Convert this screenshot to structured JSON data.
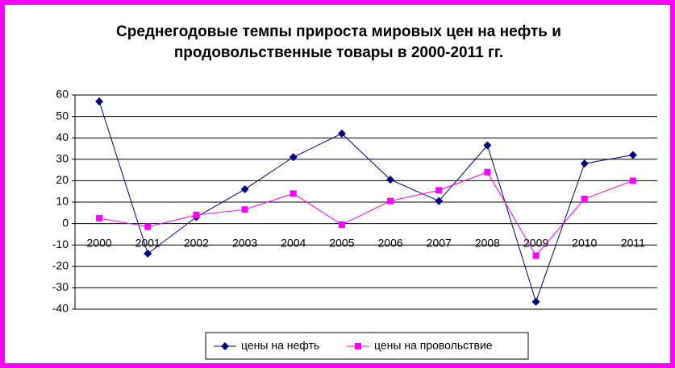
{
  "chart_data": {
    "type": "line",
    "title": [
      "Среднегодовые темпы прироста мировых цен на нефть и",
      "продовольственные товары в 2000-2011 гг."
    ],
    "categories": [
      "2000",
      "2001",
      "2002",
      "2003",
      "2004",
      "2005",
      "2006",
      "2007",
      "2008",
      "2009",
      "2010",
      "2011"
    ],
    "series": [
      {
        "name": "цены на нефть",
        "color": "#000080",
        "marker": "diamond",
        "values": [
          57,
          -14,
          3,
          16,
          31,
          42,
          20.5,
          10.5,
          36.5,
          -36.5,
          28,
          32
        ]
      },
      {
        "name": "цены на провольствие",
        "color": "#ff00ff",
        "marker": "square",
        "values": [
          2.5,
          -1.5,
          4,
          6.5,
          14,
          -0.5,
          10.5,
          15.5,
          24,
          -15,
          11.5,
          20
        ]
      }
    ],
    "ylim": [
      -40,
      60
    ],
    "yticks": [
      -40,
      -30,
      -20,
      -10,
      0,
      10,
      20,
      30,
      40,
      50,
      60
    ],
    "grid": true,
    "legend": "bottom"
  }
}
